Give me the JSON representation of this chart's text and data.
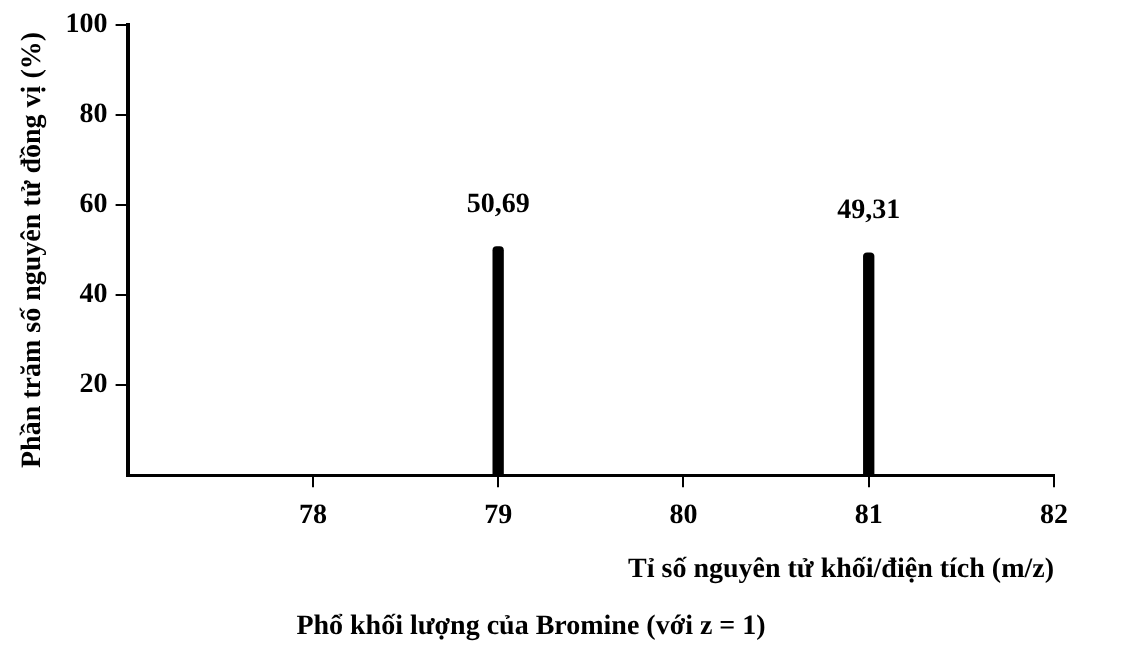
{
  "chart_data": {
    "type": "bar",
    "title": "Phổ khối lượng của Bromine (với z = 1)",
    "xlabel": "Tỉ số nguyên tử khối/điện tích (m/z)",
    "ylabel": "Phần trăm số nguyên tử đồng vị (%)",
    "x": [
      79,
      81
    ],
    "values": [
      50.69,
      49.31
    ],
    "value_labels": [
      "50,69",
      "49,31"
    ],
    "color": "#000000",
    "xlim": [
      77,
      82
    ],
    "xticks": [
      78,
      79,
      80,
      81,
      82
    ],
    "ylim": [
      0,
      100
    ],
    "yticks": [
      20,
      40,
      60,
      80,
      100
    ],
    "grid": false,
    "legend": false
  }
}
